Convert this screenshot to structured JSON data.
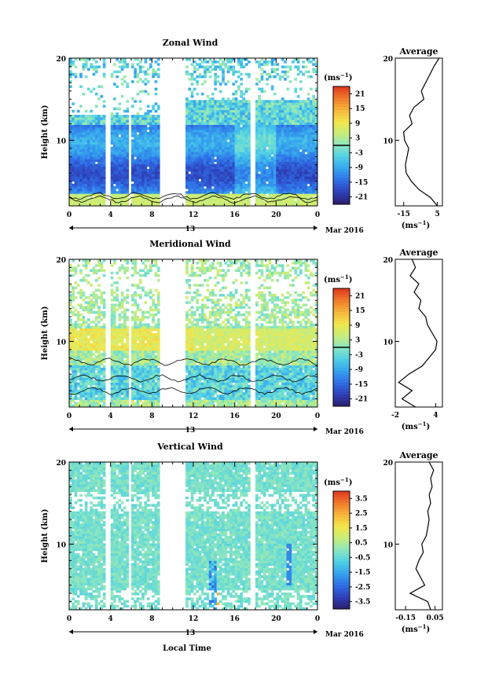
{
  "chart_data": [
    {
      "type": "heatmap",
      "title": "Zonal Wind",
      "ylabel": "Height (km)",
      "ylim": [
        2,
        20
      ],
      "xlim": [
        0,
        24
      ],
      "x_ticks": [
        "0",
        "4",
        "8",
        "12",
        "16",
        "20",
        "0"
      ],
      "y_ticks": [
        "10",
        "20"
      ],
      "date_label": "13",
      "date_suffix": "Mar 2016",
      "colorbar": {
        "unit": "(ms",
        "unit_exp": "−1",
        "unit_close": ")",
        "ticks": [
          "21",
          "15",
          "9",
          "3",
          "-3",
          "-9",
          "-15",
          "-21"
        ],
        "range": [
          -24,
          24
        ],
        "contour_at": 0
      },
      "data_gaps_hours": [
        [
          3.5,
          4.1
        ],
        [
          5.7,
          6.0
        ],
        [
          8.7,
          11.3
        ],
        [
          17.6,
          17.9
        ]
      ],
      "average": {
        "title": "Average",
        "xlabel": "(ms",
        "xlabel_exp": "−1",
        "xlabel_close": ")",
        "x_ticks": [
          "-15",
          "5"
        ],
        "y_ticks": [
          "10",
          "20"
        ],
        "xlim": [
          -20,
          8
        ],
        "profile": [
          [
            2,
            5.0
          ],
          [
            3,
            1.0
          ],
          [
            4,
            -6.0
          ],
          [
            5,
            -10.5
          ],
          [
            6,
            -13.5
          ],
          [
            7,
            -14.0
          ],
          [
            8,
            -13.0
          ],
          [
            9,
            -12.0
          ],
          [
            10,
            -14.5
          ],
          [
            11,
            -15.0
          ],
          [
            12,
            -10.0
          ],
          [
            13,
            -11.5
          ],
          [
            14,
            -9.0
          ],
          [
            15,
            -3.0
          ],
          [
            16,
            -4.5
          ],
          [
            17,
            -2.0
          ],
          [
            18,
            0.5
          ],
          [
            19,
            3.0
          ],
          [
            20,
            6.0
          ]
        ]
      }
    },
    {
      "type": "heatmap",
      "title": "Meridional Wind",
      "ylabel": "Height (km)",
      "ylim": [
        2,
        20
      ],
      "xlim": [
        0,
        24
      ],
      "x_ticks": [
        "0",
        "4",
        "8",
        "12",
        "16",
        "20",
        "0"
      ],
      "y_ticks": [
        "10",
        "20"
      ],
      "date_label": "13",
      "date_suffix": "Mar 2016",
      "colorbar": {
        "unit": "(ms",
        "unit_exp": "−1",
        "unit_close": ")",
        "ticks": [
          "21",
          "15",
          "9",
          "3",
          "-3",
          "-9",
          "-15",
          "-21"
        ],
        "range": [
          -24,
          24
        ],
        "contour_at": 0
      },
      "data_gaps_hours": [
        [
          3.5,
          4.1
        ],
        [
          5.7,
          6.0
        ],
        [
          8.7,
          11.3
        ],
        [
          17.6,
          17.9
        ]
      ],
      "average": {
        "title": "Average",
        "xlabel": "(ms",
        "xlabel_exp": "−1",
        "xlabel_close": ")",
        "x_ticks": [
          "-2",
          "4"
        ],
        "y_ticks": [
          "10",
          "20"
        ],
        "xlim": [
          -2,
          5
        ],
        "profile": [
          [
            2,
            1.0
          ],
          [
            3,
            -1.0
          ],
          [
            4,
            0.5
          ],
          [
            5,
            -1.5
          ],
          [
            6,
            0.0
          ],
          [
            7,
            2.0
          ],
          [
            8,
            3.0
          ],
          [
            9,
            4.0
          ],
          [
            10,
            4.2
          ],
          [
            11,
            3.5
          ],
          [
            12,
            2.8
          ],
          [
            13,
            2.5
          ],
          [
            14,
            1.5
          ],
          [
            15,
            1.8
          ],
          [
            16,
            0.8
          ],
          [
            17,
            1.5
          ],
          [
            18,
            0.2
          ],
          [
            19,
            1.0
          ],
          [
            20,
            0.5
          ]
        ]
      }
    },
    {
      "type": "heatmap",
      "title": "Vertical Wind",
      "ylabel": "Height (km)",
      "xlabel": "Local Time",
      "ylim": [
        2,
        20
      ],
      "xlim": [
        0,
        24
      ],
      "x_ticks": [
        "0",
        "4",
        "8",
        "12",
        "16",
        "20",
        "0"
      ],
      "y_ticks": [
        "10",
        "20"
      ],
      "date_label": "13",
      "date_suffix": "Mar 2016",
      "colorbar": {
        "unit": "(ms",
        "unit_exp": "−1",
        "unit_close": ")",
        "ticks": [
          "3.5",
          "2.5",
          "1.5",
          "0.5",
          "-0.5",
          "-1.5",
          "-2.5",
          "-3.5"
        ],
        "range": [
          -4,
          4
        ]
      },
      "data_gaps_hours": [
        [
          3.5,
          4.1
        ],
        [
          5.7,
          6.0
        ],
        [
          8.7,
          11.3
        ],
        [
          17.6,
          17.9
        ]
      ],
      "average": {
        "title": "Average",
        "xlabel": "(ms",
        "xlabel_exp": "−1",
        "xlabel_close": ")",
        "x_ticks": [
          "-0.15",
          "0.05"
        ],
        "y_ticks": [
          "10",
          "20"
        ],
        "xlim": [
          -0.22,
          0.1
        ],
        "profile": [
          [
            2,
            0.02
          ],
          [
            3,
            0.0
          ],
          [
            4,
            -0.12
          ],
          [
            5,
            -0.02
          ],
          [
            6,
            -0.05
          ],
          [
            7,
            -0.08
          ],
          [
            8,
            -0.06
          ],
          [
            9,
            -0.03
          ],
          [
            10,
            -0.04
          ],
          [
            11,
            -0.01
          ],
          [
            12,
            0.0
          ],
          [
            13,
            0.01
          ],
          [
            14,
            0.0
          ],
          [
            15,
            0.02
          ],
          [
            16,
            0.01
          ],
          [
            17,
            0.03
          ],
          [
            18,
            0.02
          ],
          [
            19,
            0.04
          ],
          [
            20,
            0.01
          ]
        ]
      }
    }
  ]
}
